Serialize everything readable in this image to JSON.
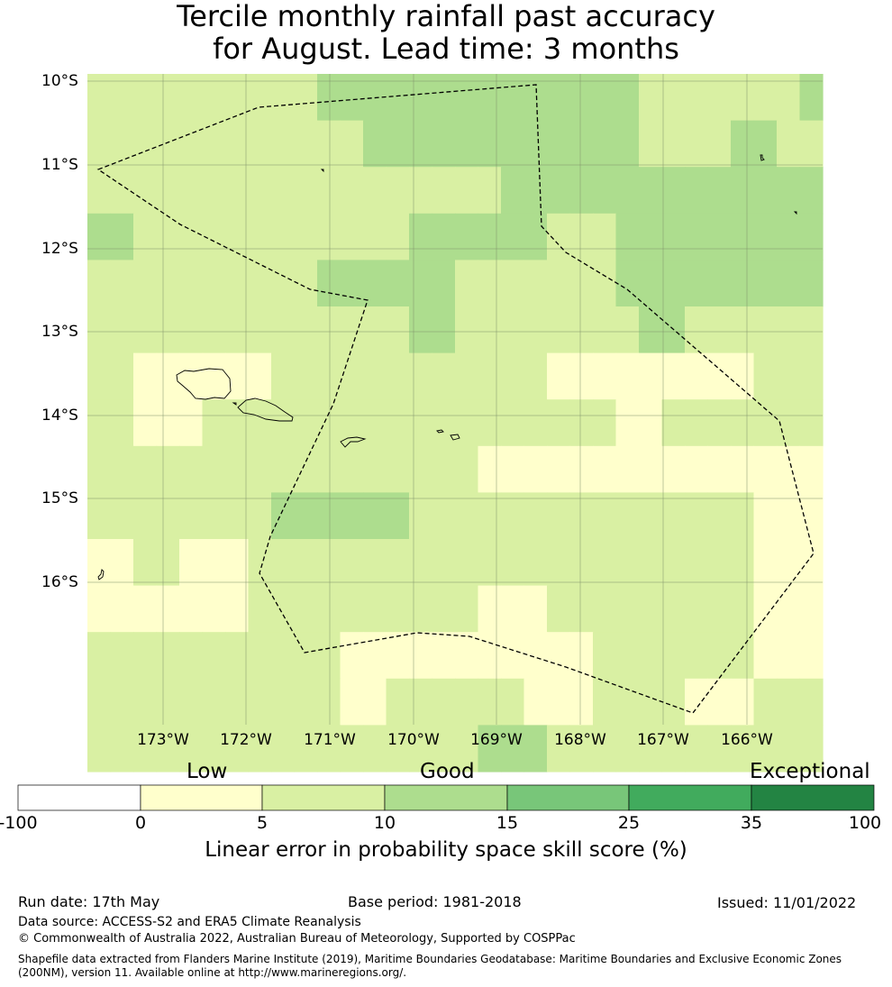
{
  "title_line1": "Tercile monthly rainfall past accuracy",
  "title_line2": "for August. Lead time: 3 months",
  "lat_labels": [
    "10°S",
    "11°S",
    "12°S",
    "13°S",
    "14°S",
    "15°S",
    "16°S"
  ],
  "lon_labels": [
    "173°W",
    "172°W",
    "171°W",
    "170°W",
    "169°W",
    "168°W",
    "167°W",
    "166°W"
  ],
  "legend": {
    "categories": [
      "Low",
      "Good",
      "Exceptional"
    ],
    "ticks": [
      "-100",
      "0",
      "5",
      "10",
      "15",
      "25",
      "35",
      "100"
    ],
    "colors": [
      "#ffffff",
      "#ffffcc",
      "#d9f0a3",
      "#addd8e",
      "#78c679",
      "#41ab5d",
      "#238443"
    ],
    "title": "Linear error in probability space skill score (%)"
  },
  "footer": {
    "run_date": "Run date: 17th May",
    "base_period": "Base period: 1981-2018",
    "issued": "Issued: 11/01/2022",
    "data_source": "Data source: ACCESS-S2 and ERA5 Climate Reanalysis",
    "copyright": "© Commonwealth of Australia 2022, Australian Bureau of Meteorology, Supported by COSPPac",
    "shapefile": "Shapefile data extracted from Flanders Marine Institute (2019), Maritime Boundaries Geodatabase: Maritime Boundaries and Exclusive Economic Zones (200NM), version 11. Available online at http://www.marineregions.org/."
  },
  "grid": [
    [
      2,
      2,
      2,
      2,
      2,
      2,
      2,
      2,
      2,
      2,
      3,
      3,
      3,
      3,
      3,
      3,
      3,
      3,
      3,
      3,
      3,
      3,
      3,
      3,
      2,
      2,
      2,
      2,
      2,
      2,
      2,
      3
    ],
    [
      2,
      2,
      2,
      2,
      2,
      2,
      2,
      2,
      2,
      2,
      2,
      2,
      3,
      3,
      3,
      3,
      3,
      3,
      3,
      3,
      3,
      3,
      3,
      3,
      2,
      2,
      2,
      2,
      3,
      3,
      2,
      2
    ],
    [
      2,
      2,
      2,
      2,
      2,
      2,
      2,
      2,
      2,
      2,
      2,
      2,
      2,
      2,
      2,
      2,
      2,
      2,
      3,
      3,
      3,
      3,
      3,
      3,
      3,
      3,
      3,
      3,
      3,
      3,
      3,
      3
    ],
    [
      3,
      3,
      2,
      2,
      2,
      2,
      2,
      2,
      2,
      2,
      2,
      2,
      2,
      2,
      3,
      3,
      3,
      3,
      3,
      3,
      2,
      2,
      2,
      3,
      3,
      3,
      3,
      3,
      3,
      3,
      3,
      3
    ],
    [
      2,
      2,
      2,
      2,
      2,
      2,
      2,
      2,
      2,
      2,
      3,
      3,
      3,
      3,
      3,
      3,
      2,
      2,
      2,
      2,
      2,
      2,
      2,
      3,
      3,
      3,
      3,
      3,
      3,
      3,
      3,
      3
    ],
    [
      2,
      2,
      2,
      2,
      2,
      2,
      2,
      2,
      2,
      2,
      2,
      2,
      2,
      2,
      3,
      3,
      2,
      2,
      2,
      2,
      2,
      2,
      2,
      2,
      3,
      3,
      2,
      2,
      2,
      2,
      2,
      2
    ],
    [
      2,
      2,
      1,
      1,
      1,
      1,
      1,
      1,
      2,
      2,
      2,
      2,
      2,
      2,
      2,
      2,
      2,
      2,
      2,
      2,
      1,
      1,
      1,
      1,
      1,
      1,
      1,
      1,
      1,
      2,
      2,
      2
    ],
    [
      2,
      2,
      1,
      1,
      1,
      2,
      2,
      2,
      2,
      2,
      2,
      2,
      2,
      2,
      2,
      2,
      2,
      2,
      2,
      2,
      2,
      2,
      2,
      1,
      1,
      2,
      2,
      2,
      2,
      2,
      2,
      2
    ],
    [
      2,
      2,
      2,
      2,
      2,
      2,
      2,
      2,
      2,
      2,
      2,
      2,
      2,
      2,
      2,
      2,
      2,
      1,
      1,
      1,
      1,
      1,
      1,
      1,
      1,
      1,
      1,
      1,
      1,
      1,
      1,
      1
    ],
    [
      2,
      2,
      2,
      2,
      2,
      2,
      2,
      2,
      3,
      3,
      3,
      3,
      3,
      3,
      2,
      2,
      2,
      2,
      2,
      2,
      2,
      2,
      2,
      2,
      2,
      2,
      2,
      2,
      2,
      1,
      1,
      1
    ],
    [
      1,
      1,
      2,
      2,
      1,
      1,
      1,
      2,
      2,
      2,
      2,
      2,
      2,
      2,
      2,
      2,
      2,
      2,
      2,
      2,
      2,
      2,
      2,
      2,
      2,
      2,
      2,
      2,
      2,
      1,
      1,
      1
    ],
    [
      1,
      1,
      1,
      1,
      1,
      1,
      1,
      2,
      2,
      2,
      2,
      2,
      2,
      2,
      2,
      2,
      2,
      1,
      1,
      1,
      2,
      2,
      2,
      2,
      2,
      2,
      2,
      2,
      2,
      1,
      1,
      1
    ],
    [
      2,
      2,
      2,
      2,
      2,
      2,
      2,
      2,
      2,
      2,
      2,
      1,
      1,
      1,
      1,
      1,
      1,
      1,
      1,
      1,
      1,
      1,
      2,
      2,
      2,
      2,
      2,
      2,
      2,
      1,
      1,
      1
    ],
    [
      2,
      2,
      2,
      2,
      2,
      2,
      2,
      2,
      2,
      2,
      2,
      1,
      1,
      2,
      2,
      2,
      2,
      2,
      2,
      1,
      1,
      1,
      2,
      2,
      2,
      2,
      1,
      1,
      1,
      2,
      2,
      2
    ],
    [
      2,
      2,
      2,
      2,
      2,
      2,
      2,
      2,
      2,
      2,
      2,
      2,
      2,
      2,
      2,
      2,
      2,
      3,
      3,
      3,
      2,
      2,
      2,
      2,
      2,
      2,
      2,
      2,
      2,
      2,
      2,
      2
    ]
  ]
}
